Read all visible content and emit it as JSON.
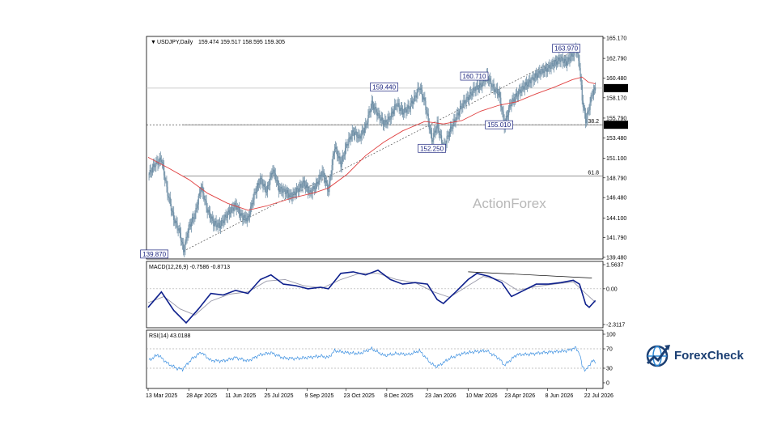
{
  "chart_data": [
    {
      "type": "candlestick",
      "symbol_header": "USDJPY,Daily",
      "ohlc_header": "159.474 159.517 158.595 159.305",
      "last_price": 159.305,
      "ylim": [
        139.48,
        165.17
      ],
      "y_ticks": [
        "165.170",
        "162.790",
        "160.480",
        "158.170",
        "155.790",
        "153.480",
        "151.100",
        "148.790",
        "146.480",
        "144.100",
        "141.790",
        "139.480"
      ],
      "price_path": [
        [
          "2025-03-13",
          149.0
        ],
        [
          "2025-03-20",
          150.3
        ],
        [
          "2025-03-28",
          151.0
        ],
        [
          "2025-04-04",
          147.0
        ],
        [
          "2025-04-11",
          144.0
        ],
        [
          "2025-04-18",
          142.3
        ],
        [
          "2025-04-22",
          140.2
        ],
        [
          "2025-04-28",
          143.0
        ],
        [
          "2025-05-05",
          144.5
        ],
        [
          "2025-05-12",
          147.8
        ],
        [
          "2025-05-19",
          145.0
        ],
        [
          "2025-05-26",
          143.5
        ],
        [
          "2025-06-02",
          143.2
        ],
        [
          "2025-06-11",
          144.6
        ],
        [
          "2025-06-20",
          145.6
        ],
        [
          "2025-06-27",
          144.2
        ],
        [
          "2025-07-04",
          144.0
        ],
        [
          "2025-07-11",
          146.8
        ],
        [
          "2025-07-18",
          148.6
        ],
        [
          "2025-07-25",
          147.2
        ],
        [
          "2025-08-01",
          149.8
        ],
        [
          "2025-08-08",
          147.5
        ],
        [
          "2025-08-15",
          147.2
        ],
        [
          "2025-08-22",
          146.6
        ],
        [
          "2025-08-29",
          147.4
        ],
        [
          "2025-09-05",
          148.2
        ],
        [
          "2025-09-12",
          147.0
        ],
        [
          "2025-09-19",
          147.9
        ],
        [
          "2025-09-26",
          149.5
        ],
        [
          "2025-10-03",
          147.3
        ],
        [
          "2025-10-10",
          152.5
        ],
        [
          "2025-10-17",
          150.4
        ],
        [
          "2025-10-24",
          152.8
        ],
        [
          "2025-10-31",
          154.2
        ],
        [
          "2025-11-07",
          153.5
        ],
        [
          "2025-11-14",
          154.8
        ],
        [
          "2025-11-21",
          157.5
        ],
        [
          "2025-11-28",
          156.2
        ],
        [
          "2025-12-05",
          155.1
        ],
        [
          "2025-12-12",
          155.9
        ],
        [
          "2025-12-19",
          157.5
        ],
        [
          "2025-12-26",
          156.5
        ],
        [
          "2026-01-02",
          157.0
        ],
        [
          "2026-01-09",
          158.3
        ],
        [
          "2026-01-14",
          159.44
        ],
        [
          "2026-01-20",
          157.6
        ],
        [
          "2026-01-24",
          155.4
        ],
        [
          "2026-01-28",
          153.2
        ],
        [
          "2026-02-03",
          155.0
        ],
        [
          "2026-02-10",
          152.25
        ],
        [
          "2026-02-17",
          154.2
        ],
        [
          "2026-02-24",
          155.8
        ],
        [
          "2026-03-03",
          157.3
        ],
        [
          "2026-03-10",
          158.2
        ],
        [
          "2026-03-17",
          159.2
        ],
        [
          "2026-03-24",
          159.6
        ],
        [
          "2026-03-31",
          160.71
        ],
        [
          "2026-04-07",
          159.4
        ],
        [
          "2026-04-14",
          158.6
        ],
        [
          "2026-04-20",
          155.01
        ],
        [
          "2026-04-27",
          157.5
        ],
        [
          "2026-05-04",
          158.5
        ],
        [
          "2026-05-11",
          159.4
        ],
        [
          "2026-05-18",
          160.0
        ],
        [
          "2026-05-25",
          160.7
        ],
        [
          "2026-06-01",
          161.3
        ],
        [
          "2026-06-08",
          161.6
        ],
        [
          "2026-06-15",
          162.2
        ],
        [
          "2026-06-22",
          162.7
        ],
        [
          "2026-06-29",
          162.3
        ],
        [
          "2026-07-06",
          163.2
        ],
        [
          "2026-07-10",
          163.97
        ],
        [
          "2026-07-14",
          162.0
        ],
        [
          "2026-07-17",
          158.0
        ],
        [
          "2026-07-21",
          155.5
        ],
        [
          "2026-07-24",
          156.6
        ],
        [
          "2026-07-28",
          158.6
        ],
        [
          "2026-08-01",
          159.3
        ]
      ],
      "ma_line": [
        [
          "2025-03-13",
          151.2
        ],
        [
          "2025-04-04",
          150.0
        ],
        [
          "2025-04-28",
          148.6
        ],
        [
          "2025-05-19",
          147.0
        ],
        [
          "2025-06-11",
          145.8
        ],
        [
          "2025-07-04",
          145.0
        ],
        [
          "2025-07-25",
          145.5
        ],
        [
          "2025-08-22",
          146.4
        ],
        [
          "2025-09-19",
          147.1
        ],
        [
          "2025-10-03",
          147.6
        ],
        [
          "2025-10-24",
          149.2
        ],
        [
          "2025-11-14",
          151.4
        ],
        [
          "2025-12-05",
          153.0
        ],
        [
          "2025-12-26",
          154.3
        ],
        [
          "2026-01-20",
          155.4
        ],
        [
          "2026-02-10",
          155.1
        ],
        [
          "2026-03-03",
          155.5
        ],
        [
          "2026-03-24",
          156.6
        ],
        [
          "2026-04-14",
          157.3
        ],
        [
          "2026-05-04",
          157.7
        ],
        [
          "2026-05-25",
          158.6
        ],
        [
          "2026-06-15",
          159.4
        ],
        [
          "2026-07-06",
          160.3
        ],
        [
          "2026-07-17",
          160.6
        ],
        [
          "2026-07-24",
          160.0
        ],
        [
          "2026-08-01",
          159.8
        ]
      ],
      "trendline": [
        [
          "2025-04-22",
          140.2
        ],
        [
          "2026-07-10",
          163.8
        ]
      ],
      "horizontal_lines": [
        {
          "name": "current-price",
          "value": 159.305
        },
        {
          "name": "fib-38.2",
          "label": "38.2",
          "value": 155.01
        },
        {
          "name": "fib-61.8",
          "label": "61.8",
          "value": 148.99
        }
      ],
      "dashed_line_value": 155.01,
      "box_labels": [
        {
          "text": "139.870",
          "date": "2025-03-20",
          "value": 139.87
        },
        {
          "text": "159.440",
          "date": "2025-12-05",
          "value": 159.44
        },
        {
          "text": "152.250",
          "date": "2026-01-28",
          "value": 152.25
        },
        {
          "text": "160.710",
          "date": "2026-03-17",
          "value": 160.71
        },
        {
          "text": "155.010",
          "date": "2026-04-14",
          "value": 155.01
        },
        {
          "text": "163.970",
          "date": "2026-06-29",
          "value": 163.97
        }
      ],
      "price_tags": [
        {
          "text": "159.305",
          "value": 159.305
        },
        {
          "text": "155.010",
          "value": 155.01
        }
      ],
      "fib_labels": [
        "38.2",
        "61.8"
      ],
      "watermark": "ActionForex"
    },
    {
      "type": "line",
      "header": "MACD(12,26,9) -0.7586 -0.8713",
      "ylim": [
        -2.3117,
        1.5637
      ],
      "y_ticks": [
        "1.5637",
        "0.00",
        "-2.3117"
      ],
      "macd": [
        [
          "2025-03-13",
          -1.2
        ],
        [
          "2025-03-28",
          -0.2
        ],
        [
          "2025-04-11",
          -1.4
        ],
        [
          "2025-04-25",
          -2.2
        ],
        [
          "2025-05-09",
          -1.3
        ],
        [
          "2025-05-23",
          -0.3
        ],
        [
          "2025-06-06",
          -0.4
        ],
        [
          "2025-06-20",
          -0.1
        ],
        [
          "2025-07-04",
          -0.3
        ],
        [
          "2025-07-18",
          0.6
        ],
        [
          "2025-07-30",
          0.9
        ],
        [
          "2025-08-13",
          0.3
        ],
        [
          "2025-08-27",
          0.2
        ],
        [
          "2025-09-10",
          0.0
        ],
        [
          "2025-09-24",
          0.1
        ],
        [
          "2025-10-03",
          0.0
        ],
        [
          "2025-10-17",
          1.0
        ],
        [
          "2025-10-31",
          1.1
        ],
        [
          "2025-11-14",
          0.9
        ],
        [
          "2025-11-28",
          1.2
        ],
        [
          "2025-12-12",
          0.6
        ],
        [
          "2025-12-26",
          0.3
        ],
        [
          "2026-01-09",
          0.4
        ],
        [
          "2026-01-23",
          0.3
        ],
        [
          "2026-02-03",
          -0.7
        ],
        [
          "2026-02-10",
          -0.95
        ],
        [
          "2026-02-24",
          -0.2
        ],
        [
          "2026-03-10",
          0.6
        ],
        [
          "2026-03-20",
          1.0
        ],
        [
          "2026-04-03",
          0.8
        ],
        [
          "2026-04-17",
          0.4
        ],
        [
          "2026-04-28",
          -0.5
        ],
        [
          "2026-05-12",
          -0.1
        ],
        [
          "2026-05-26",
          0.3
        ],
        [
          "2026-06-09",
          0.3
        ],
        [
          "2026-06-23",
          0.4
        ],
        [
          "2026-07-07",
          0.55
        ],
        [
          "2026-07-14",
          0.3
        ],
        [
          "2026-07-21",
          -1.0
        ],
        [
          "2026-07-25",
          -1.2
        ],
        [
          "2026-08-01",
          -0.76
        ]
      ],
      "signal": [
        [
          "2025-03-13",
          -0.9
        ],
        [
          "2025-03-31",
          -0.5
        ],
        [
          "2025-04-18",
          -1.3
        ],
        [
          "2025-05-05",
          -1.7
        ],
        [
          "2025-05-23",
          -0.8
        ],
        [
          "2025-06-13",
          -0.35
        ],
        [
          "2025-07-04",
          -0.2
        ],
        [
          "2025-07-25",
          0.5
        ],
        [
          "2025-08-15",
          0.6
        ],
        [
          "2025-09-05",
          0.2
        ],
        [
          "2025-09-26",
          0.05
        ],
        [
          "2025-10-17",
          0.6
        ],
        [
          "2025-11-07",
          1.0
        ],
        [
          "2025-11-28",
          1.0
        ],
        [
          "2025-12-19",
          0.6
        ],
        [
          "2026-01-09",
          0.4
        ],
        [
          "2026-01-30",
          -0.2
        ],
        [
          "2026-02-17",
          -0.55
        ],
        [
          "2026-03-10",
          0.2
        ],
        [
          "2026-03-27",
          0.8
        ],
        [
          "2026-04-17",
          0.55
        ],
        [
          "2026-05-05",
          -0.1
        ],
        [
          "2026-05-26",
          0.15
        ],
        [
          "2026-06-16",
          0.3
        ],
        [
          "2026-07-07",
          0.45
        ],
        [
          "2026-07-21",
          -0.3
        ],
        [
          "2026-08-01",
          -0.87
        ]
      ],
      "divergence_line": [
        [
          "2026-03-10",
          1.1
        ],
        [
          "2026-07-28",
          0.7
        ]
      ]
    },
    {
      "type": "line",
      "header": "RSI(14) 43.0188",
      "ylim": [
        0,
        100
      ],
      "y_ticks": [
        "100",
        "70",
        "30",
        "0"
      ],
      "levels": [
        70,
        30
      ],
      "rsi": [
        [
          "2025-03-13",
          45
        ],
        [
          "2025-03-24",
          58
        ],
        [
          "2025-04-04",
          40
        ],
        [
          "2025-04-14",
          30
        ],
        [
          "2025-04-21",
          28
        ],
        [
          "2025-05-02",
          50
        ],
        [
          "2025-05-12",
          63
        ],
        [
          "2025-05-23",
          46
        ],
        [
          "2025-06-06",
          45
        ],
        [
          "2025-06-20",
          52
        ],
        [
          "2025-07-04",
          45
        ],
        [
          "2025-07-18",
          58
        ],
        [
          "2025-07-30",
          62
        ],
        [
          "2025-08-13",
          51
        ],
        [
          "2025-08-27",
          50
        ],
        [
          "2025-09-10",
          52
        ],
        [
          "2025-09-24",
          55
        ],
        [
          "2025-10-03",
          52
        ],
        [
          "2025-10-10",
          66
        ],
        [
          "2025-10-24",
          62
        ],
        [
          "2025-11-07",
          60
        ],
        [
          "2025-11-21",
          70
        ],
        [
          "2025-12-05",
          56
        ],
        [
          "2025-12-19",
          60
        ],
        [
          "2026-01-02",
          58
        ],
        [
          "2026-01-14",
          66
        ],
        [
          "2026-01-28",
          38
        ],
        [
          "2026-02-03",
          33
        ],
        [
          "2026-02-17",
          50
        ],
        [
          "2026-03-03",
          60
        ],
        [
          "2026-03-17",
          64
        ],
        [
          "2026-03-31",
          66
        ],
        [
          "2026-04-14",
          50
        ],
        [
          "2026-04-20",
          36
        ],
        [
          "2026-05-04",
          58
        ],
        [
          "2026-05-18",
          59
        ],
        [
          "2026-06-01",
          62
        ],
        [
          "2026-06-15",
          64
        ],
        [
          "2026-06-29",
          66
        ],
        [
          "2026-07-10",
          72
        ],
        [
          "2026-07-14",
          60
        ],
        [
          "2026-07-17",
          35
        ],
        [
          "2026-07-21",
          25
        ],
        [
          "2026-07-24",
          33
        ],
        [
          "2026-07-28",
          45
        ],
        [
          "2026-08-01",
          43
        ]
      ]
    }
  ],
  "x_ticks": [
    "13 Mar 2025",
    "28 Apr 2025",
    "11 Jun 2025",
    "25 Jul 2025",
    "9 Sep 2025",
    "23 Oct 2025",
    "8 Dec 2025",
    "23 Jan 2026",
    "10 Mar 2026",
    "23 Apr 2026",
    "8 Jun 2026",
    "22 Jul 2026"
  ],
  "x_tick_dates": [
    "2025-03-13",
    "2025-04-28",
    "2025-06-11",
    "2025-07-25",
    "2025-09-09",
    "2025-10-23",
    "2025-12-08",
    "2026-01-23",
    "2026-03-10",
    "2026-04-23",
    "2026-06-08",
    "2026-07-22"
  ],
  "x_range": [
    "2025-03-13",
    "2026-08-05"
  ],
  "colors": {
    "candle": "#6f8fa6",
    "ma": "#e04040",
    "macd": "#0d1f8c",
    "signal": "#9a9aaa",
    "rsi": "#3b8fe0",
    "level": "#8c8c8c",
    "box_border": "#1a237e",
    "tag_bg": "#000000",
    "tag_text": "#ffffff",
    "logo_dark": "#1b3f73",
    "logo_light": "#2d8ad6"
  },
  "logo": {
    "text": "ForexCheck",
    "icon": "globe-arrow-icon"
  }
}
